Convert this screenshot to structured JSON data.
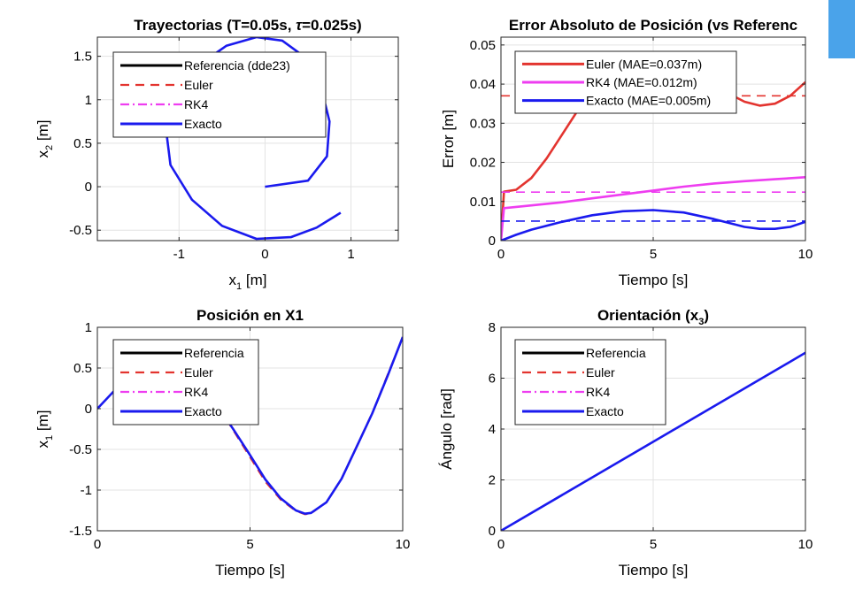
{
  "chart_data": [
    {
      "type": "line",
      "title_html": "Trayectorias  (T=0.05s,  <tspan font-style=\"italic\">τ</tspan>=0.025s)",
      "xlabel_html": "x<tspan font-size=\"11\" dy=\"5\">1</tspan><tspan dy=\"-5\">  [m]</tspan>",
      "ylabel_html": "x<tspan font-size=\"11\" dy=\"5\">2</tspan><tspan dy=\"-5\">  [m]</tspan>",
      "xlim": [
        -1.95,
        1.55
      ],
      "ylim": [
        -0.62,
        1.72
      ],
      "xticks": [
        -1,
        0,
        1
      ],
      "xtick_labels": [
        "-1",
        "0",
        "1"
      ],
      "yticks": [
        -0.5,
        0,
        0.5,
        1,
        1.5
      ],
      "ytick_labels": [
        "-0.5",
        "0",
        "0.5",
        "1",
        "1.5"
      ],
      "grid": true,
      "legend": {
        "position": "top-left",
        "entries": [
          {
            "name": "Referencia (dde23)",
            "color": "#000000",
            "style": "solid"
          },
          {
            "name": "Euler",
            "color": "#e3342f",
            "style": "dashed"
          },
          {
            "name": "RK4",
            "color": "#ee3df0",
            "style": "dashdot"
          },
          {
            "name": "Exacto",
            "color": "#1a1aee",
            "style": "solid"
          }
        ]
      },
      "series": [
        {
          "color": "#1a1aee",
          "style": "solid",
          "x": [
            0,
            0.5,
            0.72,
            0.75,
            0.65,
            0.45,
            0.2,
            -0.1,
            -0.45,
            -0.8,
            -1.05,
            -1.15,
            -1.1,
            -0.85,
            -0.5,
            -0.1,
            0.3,
            0.6,
            0.88
          ],
          "y": [
            0,
            0.07,
            0.35,
            0.75,
            1.15,
            1.5,
            1.68,
            1.72,
            1.62,
            1.38,
            1.05,
            0.65,
            0.25,
            -0.15,
            -0.45,
            -0.6,
            -0.58,
            -0.47,
            -0.3
          ]
        }
      ]
    },
    {
      "type": "line",
      "title_html": "Error Absoluto de Posición (vs Referenc",
      "xlabel_html": "Tiempo [s]",
      "ylabel_html": "Error [m]",
      "xlim": [
        0,
        10
      ],
      "ylim": [
        0,
        0.052
      ],
      "xticks": [
        0,
        5,
        10
      ],
      "xtick_labels": [
        "0",
        "5",
        "10"
      ],
      "yticks": [
        0,
        0.01,
        0.02,
        0.03,
        0.04,
        0.05
      ],
      "ytick_labels": [
        "0",
        "0.01",
        "0.02",
        "0.03",
        "0.04",
        "0.05"
      ],
      "grid": true,
      "legend": {
        "position": "top-left",
        "entries": [
          {
            "name": "Euler (MAE=0.037m)",
            "color": "#e3342f",
            "style": "solid"
          },
          {
            "name": "RK4 (MAE=0.012m)",
            "color": "#ee3df0",
            "style": "solid"
          },
          {
            "name": "Exacto (MAE=0.005m)",
            "color": "#1a1aee",
            "style": "solid"
          }
        ]
      },
      "series": [
        {
          "color": "#e3342f",
          "style": "solid",
          "x": [
            0,
            0.1,
            0.5,
            1,
            1.5,
            2,
            2.5,
            3,
            3.5,
            4,
            5,
            6,
            7,
            7.5,
            8,
            8.5,
            9,
            9.5,
            10
          ],
          "y": [
            0,
            0.0125,
            0.013,
            0.016,
            0.021,
            0.027,
            0.033,
            0.037,
            0.038,
            0.039,
            0.0395,
            0.0395,
            0.039,
            0.0375,
            0.0355,
            0.0345,
            0.035,
            0.037,
            0.0405
          ]
        },
        {
          "color": "#ee3df0",
          "style": "solid",
          "x": [
            0,
            0.1,
            1,
            2,
            3,
            4,
            5,
            6,
            7,
            8,
            9,
            10
          ],
          "y": [
            0,
            0.0083,
            0.009,
            0.0098,
            0.0108,
            0.0118,
            0.0128,
            0.0138,
            0.0146,
            0.0152,
            0.0157,
            0.0162
          ]
        },
        {
          "color": "#1a1aee",
          "style": "solid",
          "x": [
            0,
            0.5,
            1,
            2,
            3,
            4,
            5,
            6,
            7,
            8,
            8.5,
            9,
            9.5,
            10
          ],
          "y": [
            0,
            0.0015,
            0.0028,
            0.0048,
            0.0065,
            0.0075,
            0.0078,
            0.0072,
            0.0055,
            0.0035,
            0.003,
            0.003,
            0.0035,
            0.0048
          ]
        },
        {
          "color": "#e3342f",
          "style": "dashed",
          "x": [
            0,
            10
          ],
          "y": [
            0.037,
            0.037
          ]
        },
        {
          "color": "#ee3df0",
          "style": "dashed",
          "x": [
            0,
            10
          ],
          "y": [
            0.0124,
            0.0124
          ]
        },
        {
          "color": "#1a1aee",
          "style": "dashed",
          "x": [
            0,
            10
          ],
          "y": [
            0.005,
            0.005
          ]
        }
      ]
    },
    {
      "type": "line",
      "title_html": "Posición en X1",
      "xlabel_html": "Tiempo [s]",
      "ylabel_html": "x<tspan font-size=\"11\" dy=\"5\">1</tspan><tspan dy=\"-5\">  [m]</tspan>",
      "xlim": [
        0,
        10
      ],
      "ylim": [
        -1.5,
        1
      ],
      "xticks": [
        0,
        5,
        10
      ],
      "xtick_labels": [
        "0",
        "5",
        "10"
      ],
      "yticks": [
        -1.5,
        -1,
        -0.5,
        0,
        0.5,
        1
      ],
      "ytick_labels": [
        "-1.5",
        "-1",
        "-0.5",
        "0",
        "0.5",
        "1"
      ],
      "grid": true,
      "legend": {
        "position": "top-left",
        "entries": [
          {
            "name": "Referencia",
            "color": "#000000",
            "style": "solid"
          },
          {
            "name": "Euler",
            "color": "#e3342f",
            "style": "dashed"
          },
          {
            "name": "RK4",
            "color": "#ee3df0",
            "style": "dashdot"
          },
          {
            "name": "Exacto",
            "color": "#1a1aee",
            "style": "solid"
          }
        ]
      },
      "series": [
        {
          "color": "#e3342f",
          "style": "dashed",
          "x": [
            0,
            0.5,
            1,
            1.5,
            2,
            2.5,
            3,
            3.5,
            4,
            4.5,
            5,
            5.5,
            6,
            6.5,
            6.8,
            7,
            7.5,
            8,
            8.5,
            9,
            9.5,
            10
          ],
          "y": [
            0,
            0.2,
            0.38,
            0.5,
            0.55,
            0.45,
            0.33,
            0.18,
            0.0,
            -0.3,
            -0.6,
            -0.9,
            -1.12,
            -1.26,
            -1.3,
            -1.29,
            -1.15,
            -0.85,
            -0.45,
            -0.05,
            0.42,
            0.88
          ]
        },
        {
          "color": "#1a1aee",
          "style": "solid",
          "x": [
            0,
            0.5,
            1,
            1.5,
            2,
            2.5,
            3,
            3.5,
            4,
            4.5,
            5,
            5.5,
            6,
            6.5,
            6.8,
            7,
            7.5,
            8,
            8.5,
            9,
            9.5,
            10
          ],
          "y": [
            0,
            0.2,
            0.38,
            0.5,
            0.55,
            0.45,
            0.33,
            0.18,
            0.0,
            -0.28,
            -0.57,
            -0.87,
            -1.1,
            -1.25,
            -1.29,
            -1.28,
            -1.15,
            -0.86,
            -0.46,
            -0.06,
            0.4,
            0.88
          ]
        }
      ]
    },
    {
      "type": "line",
      "title_html": "Orientación  (x<tspan font-size=\"11\" dy=\"5\">3</tspan><tspan dy=\"-5\">)</tspan>",
      "xlabel_html": "Tiempo [s]",
      "ylabel_html": "Ángulo [rad]",
      "xlim": [
        0,
        10
      ],
      "ylim": [
        0,
        8
      ],
      "xticks": [
        0,
        5,
        10
      ],
      "xtick_labels": [
        "0",
        "5",
        "10"
      ],
      "yticks": [
        0,
        2,
        4,
        6,
        8
      ],
      "ytick_labels": [
        "0",
        "2",
        "4",
        "6",
        "8"
      ],
      "grid": true,
      "legend": {
        "position": "top-left",
        "entries": [
          {
            "name": "Referencia",
            "color": "#000000",
            "style": "solid"
          },
          {
            "name": "Euler",
            "color": "#e3342f",
            "style": "dashed"
          },
          {
            "name": "RK4",
            "color": "#ee3df0",
            "style": "dashdot"
          },
          {
            "name": "Exacto",
            "color": "#1a1aee",
            "style": "solid"
          }
        ]
      },
      "series": [
        {
          "color": "#1a1aee",
          "style": "solid",
          "x": [
            0,
            10
          ],
          "y": [
            0,
            7
          ]
        }
      ]
    }
  ]
}
